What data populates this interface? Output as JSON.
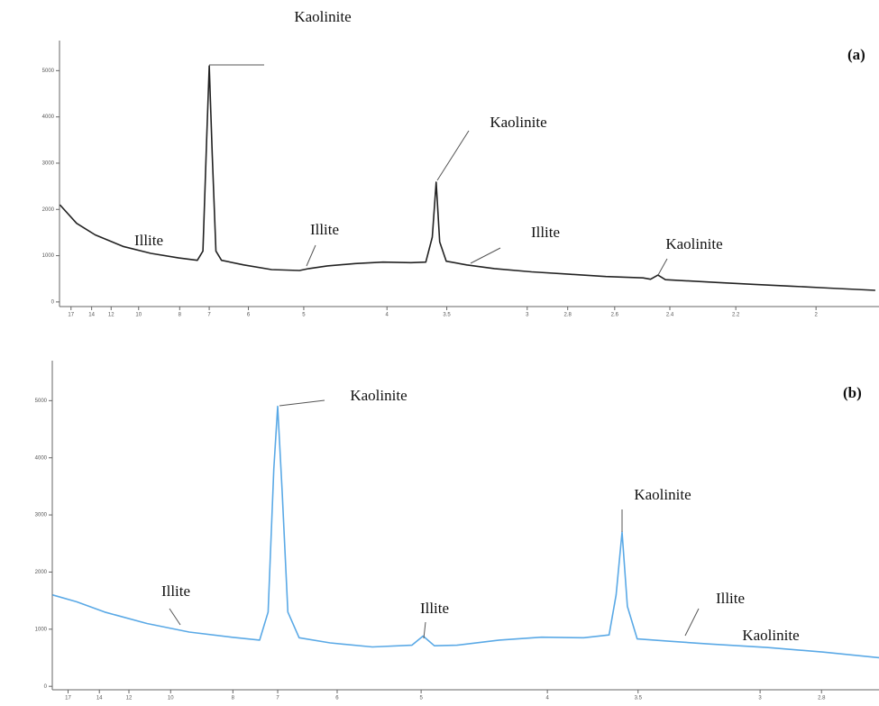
{
  "chart_data": [
    {
      "type": "line",
      "panel_label": "(a)",
      "annotations": [
        "Kaolinite",
        "Illite",
        "Illite",
        "Kaolinite",
        "Illite",
        "Kaolinite"
      ],
      "x": [
        4.6,
        5.5,
        6.5,
        8,
        9.5,
        11,
        12,
        12.3,
        12.5,
        12.64,
        12.8,
        13,
        13.3,
        14.5,
        16,
        17.5,
        18,
        19,
        20.5,
        22,
        23.5,
        24.3,
        24.65,
        24.86,
        25.05,
        25.4,
        26.5,
        28,
        30,
        32,
        34,
        36,
        36.4,
        36.8,
        37.2,
        40,
        42,
        44,
        46,
        48.5
      ],
      "series": [
        {
          "color": "#222222",
          "values": [
            2100,
            1700,
            1450,
            1200,
            1050,
            950,
            900,
            1100,
            3500,
            5100,
            3200,
            1100,
            900,
            800,
            700,
            680,
            720,
            780,
            830,
            860,
            850,
            860,
            1400,
            2590,
            1300,
            880,
            800,
            720,
            650,
            600,
            550,
            520,
            490,
            580,
            480,
            420,
            380,
            340,
            300,
            250
          ]
        }
      ],
      "xlim": [
        4.58,
        48.7
      ],
      "ylim": [
        -100,
        5650
      ],
      "yticks": [
        0,
        1000,
        2000,
        3000,
        4000,
        5000
      ],
      "xticks": [
        {
          "value": 5.2,
          "label": "17"
        },
        {
          "value": 6.31,
          "label": "14"
        },
        {
          "value": 7.36,
          "label": "12"
        },
        {
          "value": 8.84,
          "label": "10"
        },
        {
          "value": 11.05,
          "label": "8"
        },
        {
          "value": 12.64,
          "label": "7"
        },
        {
          "value": 14.75,
          "label": "6"
        },
        {
          "value": 17.73,
          "label": "5"
        },
        {
          "value": 22.21,
          "label": "4"
        },
        {
          "value": 25.43,
          "label": "3.5"
        },
        {
          "value": 29.76,
          "label": "3"
        },
        {
          "value": 31.94,
          "label": "2.8"
        },
        {
          "value": 34.47,
          "label": "2.6"
        },
        {
          "value": 37.44,
          "label": "2.4"
        },
        {
          "value": 40.99,
          "label": "2.2"
        },
        {
          "value": 45.31,
          "label": "2"
        }
      ]
    },
    {
      "type": "line",
      "panel_label": "(b)",
      "annotations": [
        "Kaolinite",
        "Illite",
        "Illite",
        "Kaolinite",
        "Illite",
        "Kaolinite"
      ],
      "x": [
        4.65,
        5.5,
        6.5,
        8,
        9.5,
        11,
        12,
        12.3,
        12.5,
        12.64,
        12.8,
        13,
        13.4,
        14.5,
        16,
        17.4,
        17.8,
        18.2,
        19,
        20.5,
        22,
        23.5,
        24.4,
        24.65,
        24.86,
        25.05,
        25.4,
        26.5,
        28,
        30,
        32,
        34
      ],
      "series": [
        {
          "color": "#5aa9e6",
          "values": [
            1600,
            1480,
            1300,
            1100,
            950,
            860,
            810,
            1300,
            3800,
            4900,
            3400,
            1300,
            850,
            760,
            690,
            720,
            880,
            710,
            720,
            810,
            860,
            850,
            900,
            1600,
            2700,
            1400,
            830,
            790,
            740,
            680,
            600,
            500
          ]
        }
      ],
      "xlim": [
        4.64,
        33.98
      ],
      "ylim": [
        -60,
        5700
      ],
      "yticks": [
        0,
        1000,
        2000,
        3000,
        4000,
        5000
      ],
      "xticks": [
        {
          "value": 5.2,
          "label": "17"
        },
        {
          "value": 6.31,
          "label": "14"
        },
        {
          "value": 7.36,
          "label": "12"
        },
        {
          "value": 8.84,
          "label": "10"
        },
        {
          "value": 11.05,
          "label": "8"
        },
        {
          "value": 12.64,
          "label": "7"
        },
        {
          "value": 14.75,
          "label": "6"
        },
        {
          "value": 17.73,
          "label": "5"
        },
        {
          "value": 22.21,
          "label": "4"
        },
        {
          "value": 25.43,
          "label": "3.5"
        },
        {
          "value": 29.76,
          "label": "3"
        },
        {
          "value": 31.94,
          "label": "2.8"
        }
      ]
    }
  ]
}
